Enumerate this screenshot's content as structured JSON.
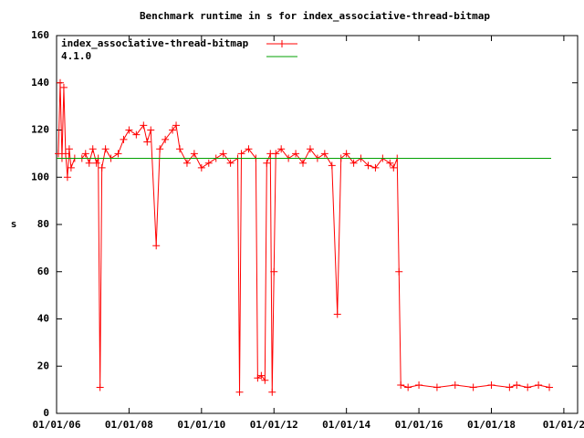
{
  "chart_data": {
    "type": "line",
    "title": "Benchmark runtime in s for index_associative-thread-bitmap",
    "y_label": "s",
    "xlim": [
      2006,
      2020.38
    ],
    "xticks": [
      {
        "value": 2006,
        "label": "01/01/06"
      },
      {
        "value": 2008,
        "label": "01/01/08"
      },
      {
        "value": 2010,
        "label": "01/01/10"
      },
      {
        "value": 2012,
        "label": "01/01/12"
      },
      {
        "value": 2014,
        "label": "01/01/14"
      },
      {
        "value": 2016,
        "label": "01/01/16"
      },
      {
        "value": 2018,
        "label": "01/01/18"
      },
      {
        "value": 2020,
        "label": "01/01/2"
      }
    ],
    "ylim": [
      0,
      160
    ],
    "yticks": [
      0,
      20,
      40,
      60,
      80,
      100,
      120,
      140,
      160
    ],
    "legend": "top-left",
    "series": [
      {
        "name": "index_associative-thread-bitmap",
        "color": "#ff0000",
        "markers": true,
        "x": [
          2006.05,
          2006.1,
          2006.15,
          2006.2,
          2006.25,
          2006.3,
          2006.35,
          2006.4,
          2006.5,
          2006.7,
          2006.8,
          2006.9,
          2007.0,
          2007.1,
          2007.15,
          2007.2,
          2007.25,
          2007.35,
          2007.5,
          2007.7,
          2007.85,
          2008.0,
          2008.2,
          2008.4,
          2008.5,
          2008.6,
          2008.75,
          2008.85,
          2009.0,
          2009.2,
          2009.3,
          2009.4,
          2009.6,
          2009.8,
          2010.0,
          2010.2,
          2010.4,
          2010.6,
          2010.8,
          2011.0,
          2011.05,
          2011.1,
          2011.3,
          2011.5,
          2011.55,
          2011.65,
          2011.75,
          2011.8,
          2011.9,
          2011.95,
          2012.0,
          2012.05,
          2012.2,
          2012.4,
          2012.6,
          2012.8,
          2013.0,
          2013.2,
          2013.4,
          2013.6,
          2013.75,
          2013.85,
          2014.0,
          2014.2,
          2014.4,
          2014.6,
          2014.8,
          2015.0,
          2015.2,
          2015.3,
          2015.4,
          2015.45,
          2015.5,
          2015.7,
          2016.0,
          2016.5,
          2017.0,
          2017.5,
          2018.0,
          2018.5,
          2018.7,
          2019.0,
          2019.3,
          2019.6
        ],
        "values": [
          110,
          140,
          108,
          138,
          110,
          100,
          112,
          104,
          108,
          108,
          110,
          106,
          112,
          106,
          108,
          11,
          104,
          112,
          108,
          110,
          116,
          120,
          118,
          122,
          115,
          120,
          71,
          112,
          116,
          120,
          122,
          112,
          106,
          110,
          104,
          106,
          108,
          110,
          106,
          108,
          9,
          110,
          112,
          108,
          15,
          16,
          14,
          106,
          110,
          9,
          60,
          110,
          112,
          108,
          110,
          106,
          112,
          108,
          110,
          105,
          42,
          108,
          110,
          106,
          108,
          105,
          104,
          108,
          106,
          104,
          108,
          60,
          12,
          11,
          12,
          11,
          12,
          11,
          12,
          11,
          12,
          11,
          12,
          11
        ]
      },
      {
        "name": "4.1.0",
        "color": "#00a000",
        "markers": false,
        "x": [
          2006,
          2019.65
        ],
        "values": [
          108,
          108
        ]
      }
    ]
  }
}
